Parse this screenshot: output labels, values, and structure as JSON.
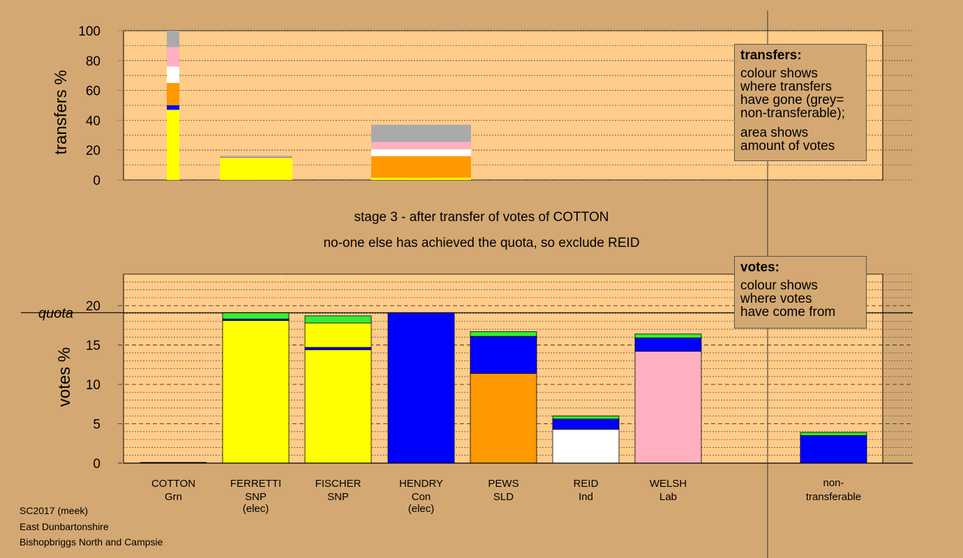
{
  "colors": {
    "bg": "#d4a872",
    "plot_bg": "#ffcc8a",
    "Grn": "#33ee33",
    "SNP": "#ffff00",
    "Con": "#0000ff",
    "SLD": "#ff9900",
    "Ind": "#ffffff",
    "Lab": "#ffb0c0",
    "nontransferable": "#aaaaaa"
  },
  "captions": {
    "line1": "stage 3 - after transfer of votes of COTTON",
    "line2": "no-one else has achieved the quota, so exclude REID"
  },
  "legend_transfers": {
    "title": "transfers:",
    "lines": [
      "colour shows",
      "where transfers",
      "have gone (grey=",
      "non-transferable);",
      "area shows",
      "amount of votes"
    ]
  },
  "legend_votes": {
    "title": "votes:",
    "lines": [
      "colour shows",
      "where votes",
      "have come from"
    ]
  },
  "footer": [
    "SC2017 (meek)",
    "East Dunbartonshire",
    "Bishopbriggs North and Campsie"
  ],
  "chart_data": [
    {
      "type": "bar",
      "name": "transfers",
      "ylabel": "transfers %",
      "ylim": [
        0,
        100
      ],
      "yticks": [
        0,
        20,
        40,
        60,
        80,
        100
      ],
      "bars": [
        {
          "segments": [
            {
              "party": "SNP",
              "from": 0,
              "to": 47
            },
            {
              "party": "Con",
              "from": 47,
              "to": 50
            },
            {
              "party": "SLD",
              "from": 50,
              "to": 65
            },
            {
              "party": "Ind",
              "from": 65,
              "to": 76
            },
            {
              "party": "Lab",
              "from": 76,
              "to": 89
            },
            {
              "party": "nontransferable",
              "from": 89,
              "to": 100
            }
          ]
        },
        {
          "segments": [
            {
              "party": "SNP",
              "from": 0,
              "to": 15
            },
            {
              "party": "Con",
              "from": 15,
              "to": 15.3
            },
            {
              "party": "Lab",
              "from": 15.3,
              "to": 15.8
            },
            {
              "party": "nontransferable",
              "from": 15.8,
              "to": 16.2
            }
          ]
        },
        {
          "segments": [
            {
              "party": "SNP",
              "from": 0,
              "to": 1.5
            },
            {
              "party": "SLD",
              "from": 1.5,
              "to": 16
            },
            {
              "party": "Ind",
              "from": 16,
              "to": 20.5
            },
            {
              "party": "Lab",
              "from": 20.5,
              "to": 25.5
            },
            {
              "party": "nontransferable",
              "from": 25.5,
              "to": 37
            }
          ]
        }
      ]
    },
    {
      "type": "bar",
      "name": "votes",
      "ylabel": "votes %",
      "ylim": [
        0,
        24
      ],
      "yticks": [
        0,
        5,
        10,
        15,
        20
      ],
      "quota": 19.1,
      "quota_label": "quota",
      "candidates": [
        {
          "name": "COTTON",
          "party": "Grn",
          "note": "",
          "segments": []
        },
        {
          "name": "FERRETTI",
          "party": "SNP",
          "note": "(elec)",
          "segments": [
            {
              "party": "SNP",
              "from": 0,
              "to": 18.1
            },
            {
              "party": "Con",
              "from": 18.1,
              "to": 18.3
            },
            {
              "party": "Grn",
              "from": 18.3,
              "to": 19.1
            }
          ]
        },
        {
          "name": "FISCHER",
          "party": "SNP",
          "note": "",
          "segments": [
            {
              "party": "SNP",
              "from": 0,
              "to": 14.4
            },
            {
              "party": "Con",
              "from": 14.4,
              "to": 14.7
            },
            {
              "party": "SNP",
              "from": 14.7,
              "to": 17.8
            },
            {
              "party": "Grn",
              "from": 17.8,
              "to": 18.7
            }
          ]
        },
        {
          "name": "HENDRY",
          "party": "Con",
          "note": "(elec)",
          "segments": [
            {
              "party": "Con",
              "from": 0,
              "to": 19.1
            }
          ]
        },
        {
          "name": "PEWS",
          "party": "SLD",
          "note": "",
          "segments": [
            {
              "party": "SLD",
              "from": 0,
              "to": 11.4
            },
            {
              "party": "Con",
              "from": 11.4,
              "to": 16.1
            },
            {
              "party": "Grn",
              "from": 16.1,
              "to": 16.7
            }
          ]
        },
        {
          "name": "REID",
          "party": "Ind",
          "note": "",
          "segments": [
            {
              "party": "Ind",
              "from": 0,
              "to": 4.3
            },
            {
              "party": "Con",
              "from": 4.3,
              "to": 5.6
            },
            {
              "party": "Grn",
              "from": 5.6,
              "to": 6.0
            }
          ]
        },
        {
          "name": "WELSH",
          "party": "Lab",
          "note": "",
          "segments": [
            {
              "party": "Lab",
              "from": 0,
              "to": 14.2
            },
            {
              "party": "Con",
              "from": 14.2,
              "to": 15.9
            },
            {
              "party": "Grn",
              "from": 15.9,
              "to": 16.4
            }
          ]
        }
      ],
      "nontransferable": {
        "label_line1": "non-",
        "label_line2": "transferable",
        "segments": [
          {
            "party": "Con",
            "from": 0,
            "to": 3.5
          },
          {
            "party": "Grn",
            "from": 3.5,
            "to": 3.9
          }
        ]
      }
    }
  ]
}
